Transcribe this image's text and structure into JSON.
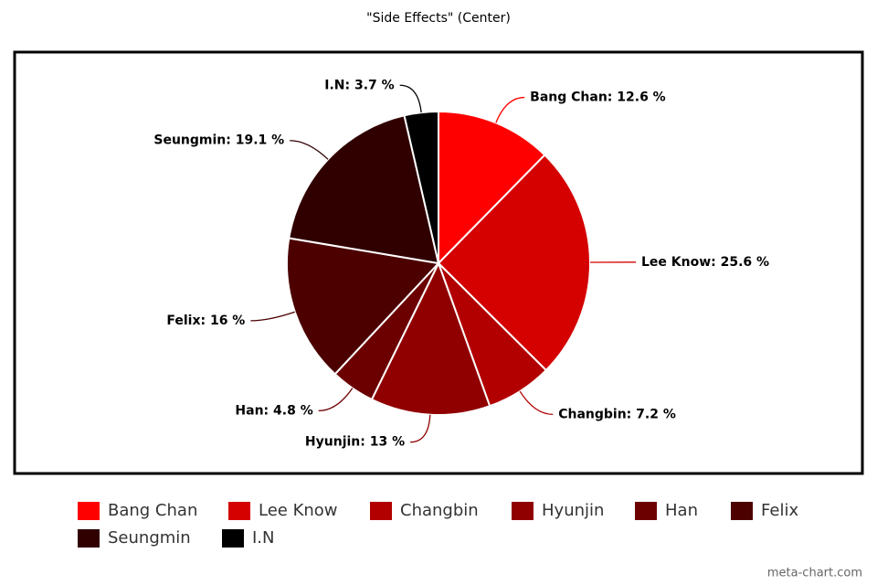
{
  "chart_data": {
    "type": "pie",
    "title": "\"Side Effects\" (Center)",
    "categories": [
      "Bang Chan",
      "Lee Know",
      "Changbin",
      "Hyunjin",
      "Han",
      "Felix",
      "Seungmin",
      "I.N"
    ],
    "values": [
      12.6,
      25.6,
      7.2,
      13,
      4.8,
      16,
      19.1,
      3.7
    ],
    "value_labels": [
      "Bang Chan: 12.6 %",
      "Lee Know: 25.6 %",
      "Changbin: 7.2 %",
      "Hyunjin: 13 %",
      "Han: 4.8 %",
      "Felix: 16 %",
      "Seungmin: 19.1 %",
      "I.N: 3.7 %"
    ],
    "colors": [
      "#ff0000",
      "#d50000",
      "#b20000",
      "#900000",
      "#6c0000",
      "#4c0000",
      "#300000",
      "#000000"
    ],
    "watermark": "meta-chart.com"
  }
}
